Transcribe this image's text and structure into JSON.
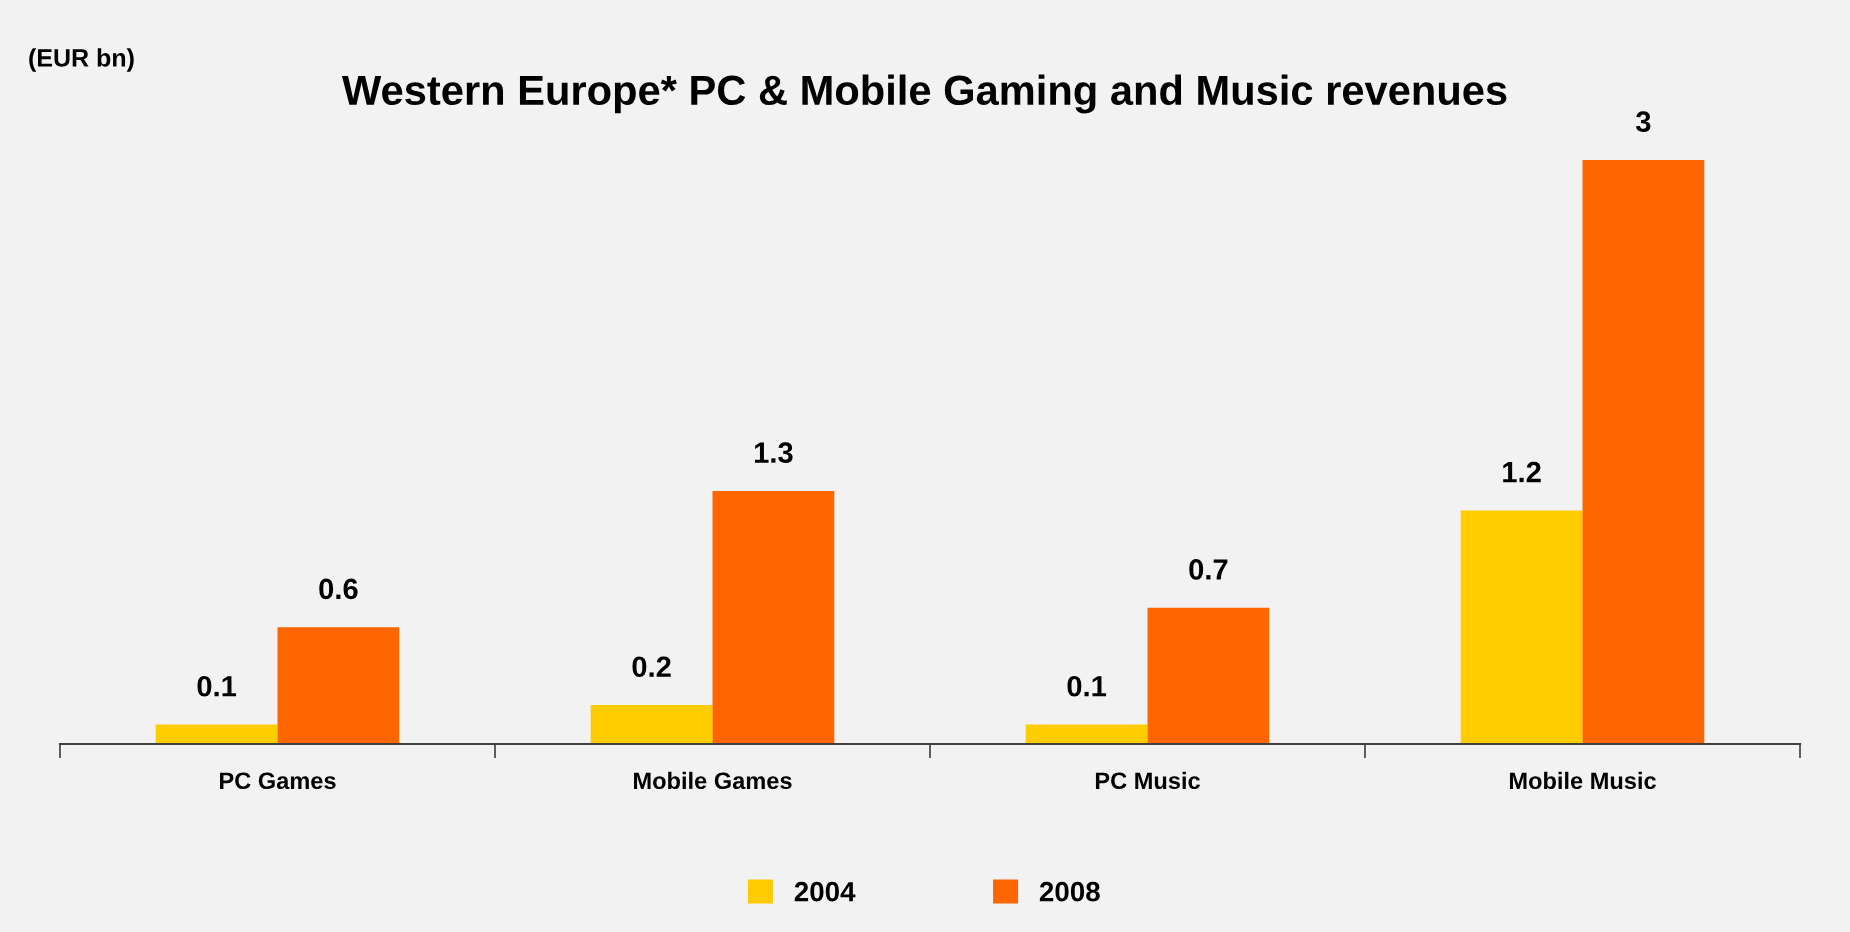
{
  "chart_data": {
    "type": "bar",
    "title": "Western Europe* PC & Mobile Gaming and Music revenues",
    "annotations": [
      "(EUR bn)"
    ],
    "categories": [
      "PC Games",
      "Mobile Games",
      "PC Music",
      "Mobile Music"
    ],
    "series": [
      {
        "name": "2004",
        "color": "#ffcc00",
        "values": [
          0.1,
          0.2,
          0.1,
          1.2
        ]
      },
      {
        "name": "2008",
        "color": "#ff6600",
        "values": [
          0.6,
          1.3,
          0.7,
          3
        ]
      }
    ],
    "data_labels": true,
    "grid": false,
    "legend": "bottom"
  }
}
